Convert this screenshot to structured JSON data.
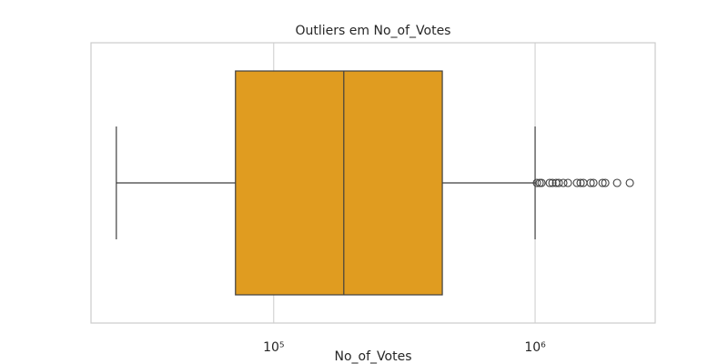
{
  "chart_data": {
    "type": "box",
    "title": "Outliers em No_of_Votes",
    "x_label": "No_of_Votes",
    "orientation": "horizontal",
    "xscale": "log",
    "grid": true,
    "color": "#e09c20",
    "xlim": [
      20000,
      2880000
    ],
    "xticks": [
      {
        "value": 100000,
        "label": "10⁵"
      },
      {
        "value": 1000000,
        "label": "10⁶"
      }
    ],
    "boxes": [
      {
        "whislo": 25000,
        "q1": 71400,
        "med": 185400,
        "q3": 441600,
        "whishi": 1000000,
        "fliers": [
          1016000,
          1041000,
          1058000,
          1137000,
          1165000,
          1203000,
          1232000,
          1282000,
          1335000,
          1446000,
          1493000,
          1530000,
          1631000,
          1671000,
          1811000,
          1855000,
          2059000,
          2303000
        ]
      }
    ]
  }
}
